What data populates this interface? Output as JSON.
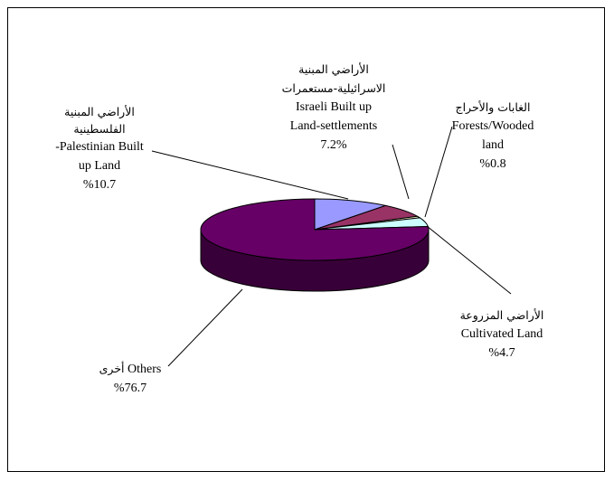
{
  "chart_data": {
    "type": "pie",
    "style": "3d",
    "slices": [
      {
        "label_ar": "الأراضي المبنية الفلسطينية",
        "label_en_1": "-Palestinian Built",
        "label_en_2": "up Land",
        "value_text": "%10.7",
        "value": 10.7,
        "color": "#9999ff"
      },
      {
        "label_ar_1": "الأراضي المبنية",
        "label_ar_2": "الاسرائيلية-مستعمرات",
        "label_en_1": "Israeli Built up",
        "label_en_2": "Land-settlements",
        "value_text": "7.2%",
        "value": 7.2,
        "color": "#993366"
      },
      {
        "label_ar": "الغابات والأحراج",
        "label_en_1": "Forests/Wooded",
        "label_en_2": "land",
        "value_text": "%0.8",
        "value": 0.8,
        "color": "#ffffcc"
      },
      {
        "label_ar": "الأراضي المزروعة",
        "label_en": "Cultivated Land",
        "value_text": "%4.7",
        "value": 4.7,
        "color": "#ccffff"
      },
      {
        "label_ar": "أخرى",
        "label_en": "Others",
        "value_text": "%76.7",
        "value": 76.7,
        "color": "#660066"
      }
    ]
  }
}
